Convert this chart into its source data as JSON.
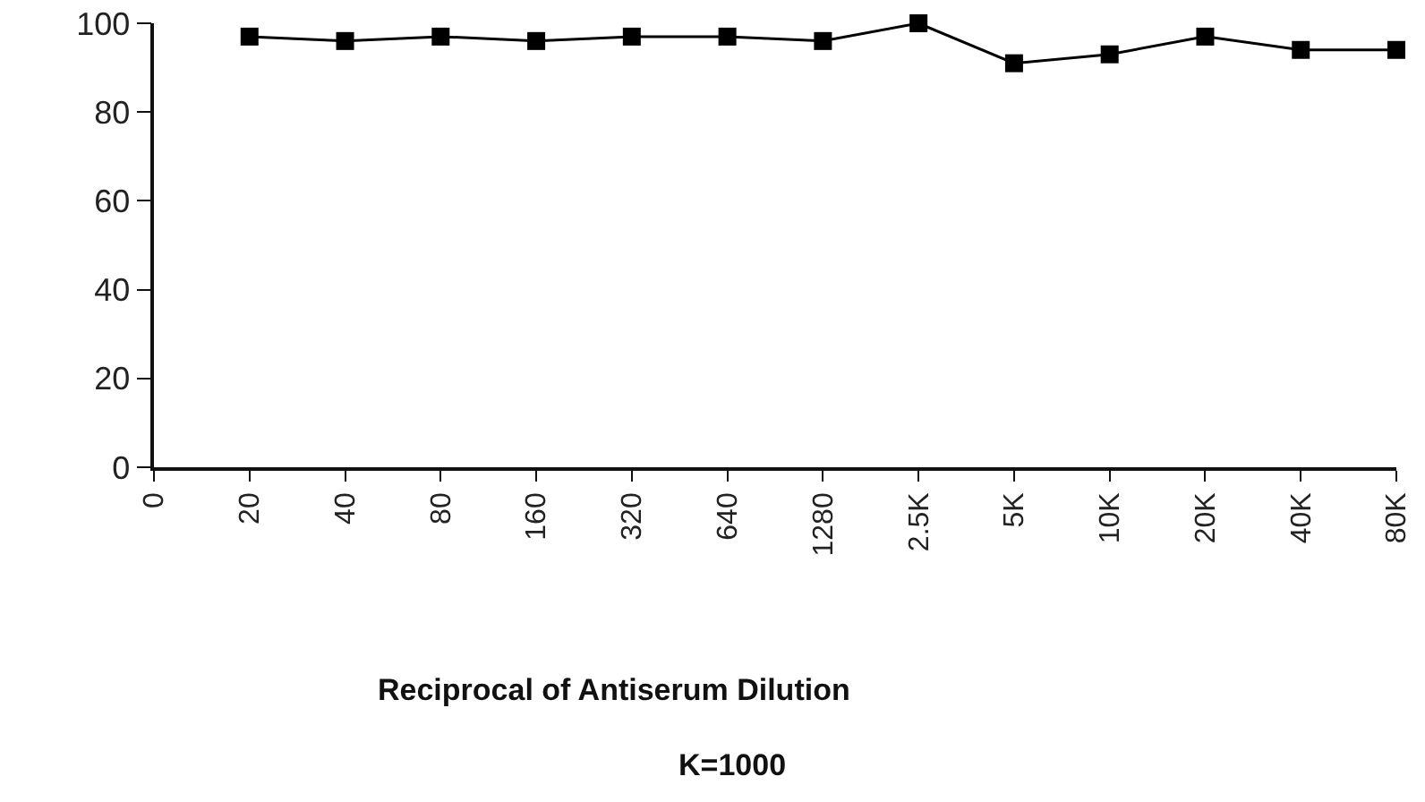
{
  "chart_data": {
    "type": "line",
    "xlabel": "Reciprocal of Antiserum Dilution",
    "annotations": [
      "K=1000"
    ],
    "categories": [
      "0",
      "20",
      "40",
      "80",
      "160",
      "320",
      "640",
      "1280",
      "2.5K",
      "5K",
      "10K",
      "20K",
      "40K",
      "80K"
    ],
    "series": [
      {
        "color": "#000000",
        "values": [
          null,
          97,
          96,
          97,
          96,
          97,
          97,
          96,
          100,
          91,
          93,
          97,
          94,
          94
        ]
      }
    ],
    "ylim": [
      0,
      100
    ],
    "yticks": [
      0,
      20,
      40,
      60,
      80,
      100
    ],
    "grid": false,
    "marker": "square",
    "line_style": "solid"
  }
}
